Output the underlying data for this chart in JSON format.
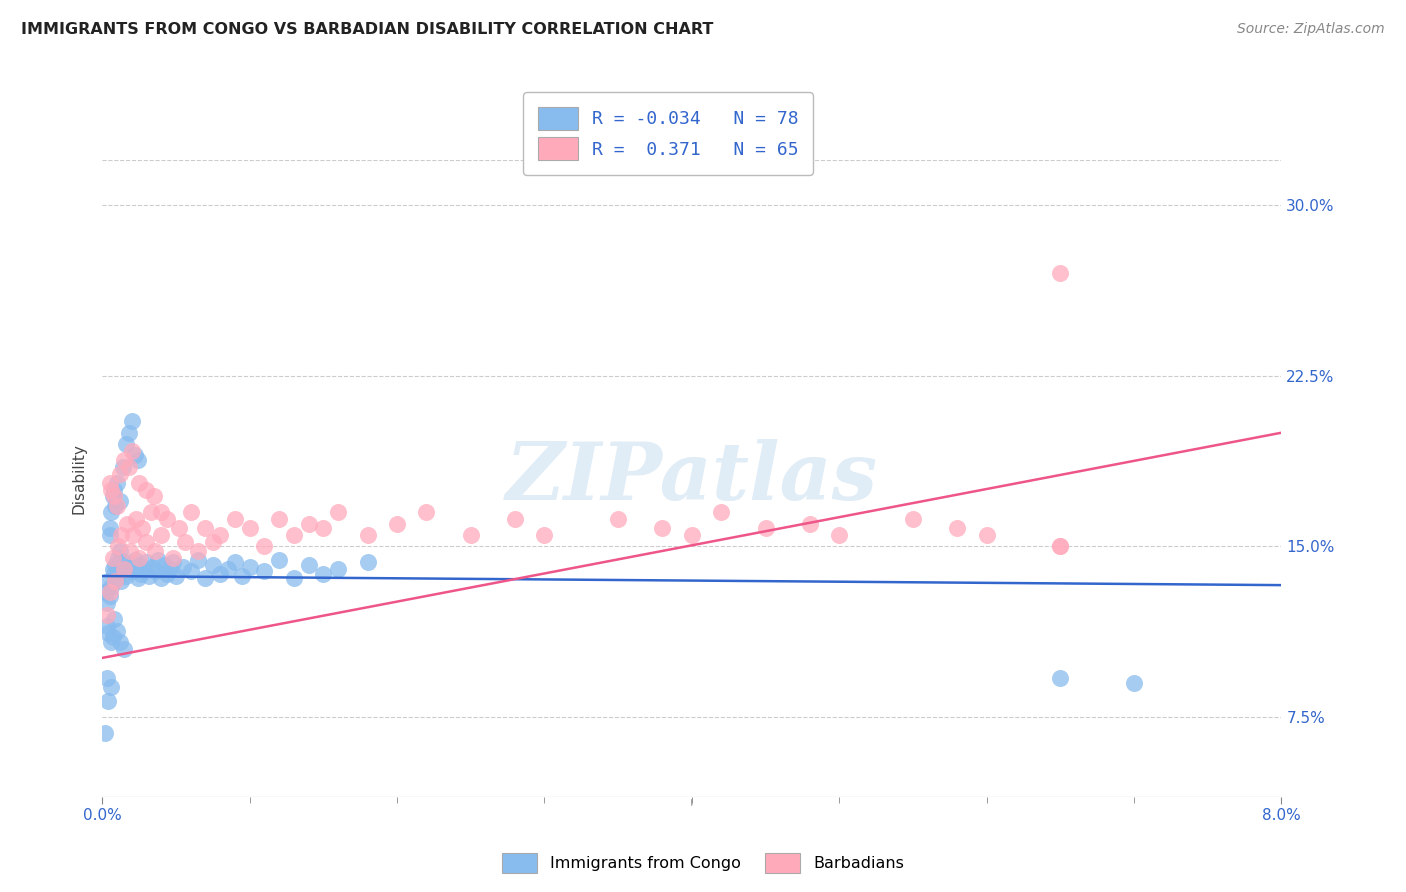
{
  "title": "IMMIGRANTS FROM CONGO VS BARBADIAN DISABILITY CORRELATION CHART",
  "source": "Source: ZipAtlas.com",
  "ylabel": "Disability",
  "ytick_labels": [
    "7.5%",
    "15.0%",
    "22.5%",
    "30.0%"
  ],
  "ytick_values": [
    0.075,
    0.15,
    0.225,
    0.3
  ],
  "xmin": 0.0,
  "xmax": 0.08,
  "ymin": 0.04,
  "ymax": 0.32,
  "legend_label1": "Immigrants from Congo",
  "legend_label2": "Barbadians",
  "color_blue": "#88bbee",
  "color_pink": "#ffaabb",
  "line_color_blue": "#3366cc",
  "line_color_pink": "#ee5588",
  "watermark": "ZIPatlas",
  "R_congo": -0.034,
  "N_congo": 78,
  "R_barb": 0.371,
  "N_barb": 65,
  "congo_x": [
    0.0002,
    0.0003,
    0.0004,
    0.0005,
    0.0006,
    0.0007,
    0.0008,
    0.0009,
    0.001,
    0.0011,
    0.0012,
    0.0013,
    0.0014,
    0.0015,
    0.0016,
    0.0018,
    0.002,
    0.0022,
    0.0024,
    0.0025,
    0.0026,
    0.0028,
    0.003,
    0.0032,
    0.0034,
    0.0036,
    0.0038,
    0.004,
    0.0042,
    0.0044,
    0.0046,
    0.0048,
    0.005,
    0.0055,
    0.006,
    0.0065,
    0.007,
    0.0075,
    0.008,
    0.0085,
    0.009,
    0.0095,
    0.01,
    0.011,
    0.012,
    0.013,
    0.014,
    0.015,
    0.016,
    0.018,
    0.0006,
    0.0007,
    0.0008,
    0.0009,
    0.001,
    0.0012,
    0.0014,
    0.0016,
    0.0018,
    0.002,
    0.0022,
    0.0024,
    0.0005,
    0.0005,
    0.0003,
    0.0004,
    0.0006,
    0.0007,
    0.0008,
    0.001,
    0.0012,
    0.0015,
    0.0003,
    0.0002,
    0.0004,
    0.0006,
    0.065,
    0.07
  ],
  "congo_y": [
    0.13,
    0.125,
    0.135,
    0.128,
    0.132,
    0.14,
    0.138,
    0.142,
    0.136,
    0.145,
    0.148,
    0.135,
    0.14,
    0.143,
    0.137,
    0.141,
    0.139,
    0.144,
    0.136,
    0.142,
    0.138,
    0.14,
    0.143,
    0.137,
    0.141,
    0.139,
    0.144,
    0.136,
    0.142,
    0.138,
    0.14,
    0.143,
    0.137,
    0.141,
    0.139,
    0.144,
    0.136,
    0.142,
    0.138,
    0.14,
    0.143,
    0.137,
    0.141,
    0.139,
    0.144,
    0.136,
    0.142,
    0.138,
    0.14,
    0.143,
    0.165,
    0.172,
    0.175,
    0.168,
    0.178,
    0.17,
    0.185,
    0.195,
    0.2,
    0.205,
    0.19,
    0.188,
    0.155,
    0.158,
    0.115,
    0.112,
    0.108,
    0.11,
    0.118,
    0.113,
    0.108,
    0.105,
    0.092,
    0.068,
    0.082,
    0.088,
    0.092,
    0.09
  ],
  "barb_x": [
    0.0003,
    0.0005,
    0.0007,
    0.0009,
    0.0011,
    0.0013,
    0.0015,
    0.0017,
    0.0019,
    0.0021,
    0.0023,
    0.0025,
    0.0027,
    0.003,
    0.0033,
    0.0036,
    0.004,
    0.0044,
    0.0048,
    0.0052,
    0.0056,
    0.006,
    0.0065,
    0.007,
    0.0075,
    0.008,
    0.009,
    0.01,
    0.011,
    0.012,
    0.013,
    0.014,
    0.015,
    0.016,
    0.018,
    0.02,
    0.022,
    0.025,
    0.028,
    0.03,
    0.035,
    0.038,
    0.04,
    0.042,
    0.045,
    0.048,
    0.05,
    0.055,
    0.058,
    0.06,
    0.065,
    0.0005,
    0.0006,
    0.0008,
    0.001,
    0.0012,
    0.0015,
    0.0018,
    0.002,
    0.0025,
    0.003,
    0.0035,
    0.004,
    0.065,
    0.065
  ],
  "barb_y": [
    0.12,
    0.13,
    0.145,
    0.135,
    0.15,
    0.155,
    0.14,
    0.16,
    0.148,
    0.155,
    0.162,
    0.145,
    0.158,
    0.152,
    0.165,
    0.148,
    0.155,
    0.162,
    0.145,
    0.158,
    0.152,
    0.165,
    0.148,
    0.158,
    0.152,
    0.155,
    0.162,
    0.158,
    0.15,
    0.162,
    0.155,
    0.16,
    0.158,
    0.165,
    0.155,
    0.16,
    0.165,
    0.155,
    0.162,
    0.155,
    0.162,
    0.158,
    0.155,
    0.165,
    0.158,
    0.16,
    0.155,
    0.162,
    0.158,
    0.155,
    0.15,
    0.178,
    0.175,
    0.172,
    0.168,
    0.182,
    0.188,
    0.185,
    0.192,
    0.178,
    0.175,
    0.172,
    0.165,
    0.27,
    0.15
  ]
}
